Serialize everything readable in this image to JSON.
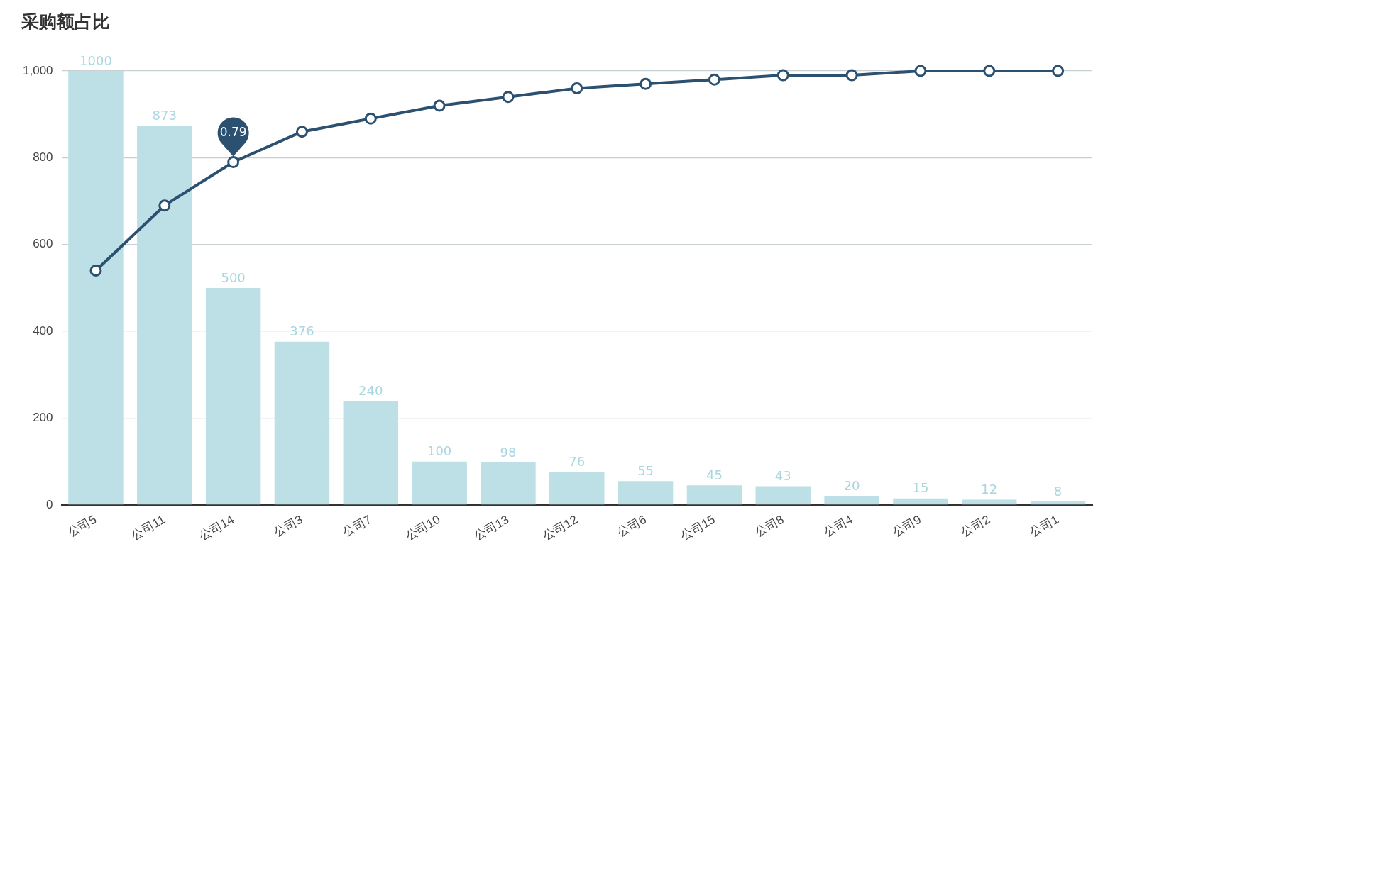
{
  "chart_data": {
    "type": "bar",
    "title": "采购额占比",
    "categories": [
      "公司5",
      "公司11",
      "公司14",
      "公司3",
      "公司7",
      "公司10",
      "公司13",
      "公司12",
      "公司6",
      "公司15",
      "公司8",
      "公司4",
      "公司9",
      "公司2",
      "公司1"
    ],
    "series": [
      {
        "color": "#bce0e6",
        "values": [
          1000,
          873,
          500,
          376,
          240,
          100,
          98,
          76,
          55,
          45,
          43,
          20,
          15,
          12,
          8
        ],
        "value_labels": [
          "1000",
          "873",
          "500",
          "376",
          "240",
          "100",
          "98",
          "76",
          "55",
          "45",
          "43",
          "20",
          "15",
          "12",
          "8"
        ]
      },
      {
        "type": "line",
        "color": "#2b5070",
        "values": [
          540,
          690,
          790,
          860,
          890,
          920,
          940,
          960,
          970,
          980,
          990,
          990,
          1000,
          1000,
          1000
        ]
      }
    ],
    "ylim": [
      0,
      1000
    ],
    "yticks": [
      0,
      {
        "value": 200,
        "label": "200"
      },
      {
        "value": 400,
        "label": "400"
      },
      {
        "value": 600,
        "label": "600"
      },
      {
        "value": 800,
        "label": "800"
      },
      {
        "value": 1000,
        "label": "1,000"
      }
    ],
    "grid": "y",
    "legend": false,
    "marker": "circle",
    "line_style": "solid",
    "annotations": [
      {
        "text": "0.79",
        "x": "公司14",
        "y": 790
      }
    ]
  }
}
